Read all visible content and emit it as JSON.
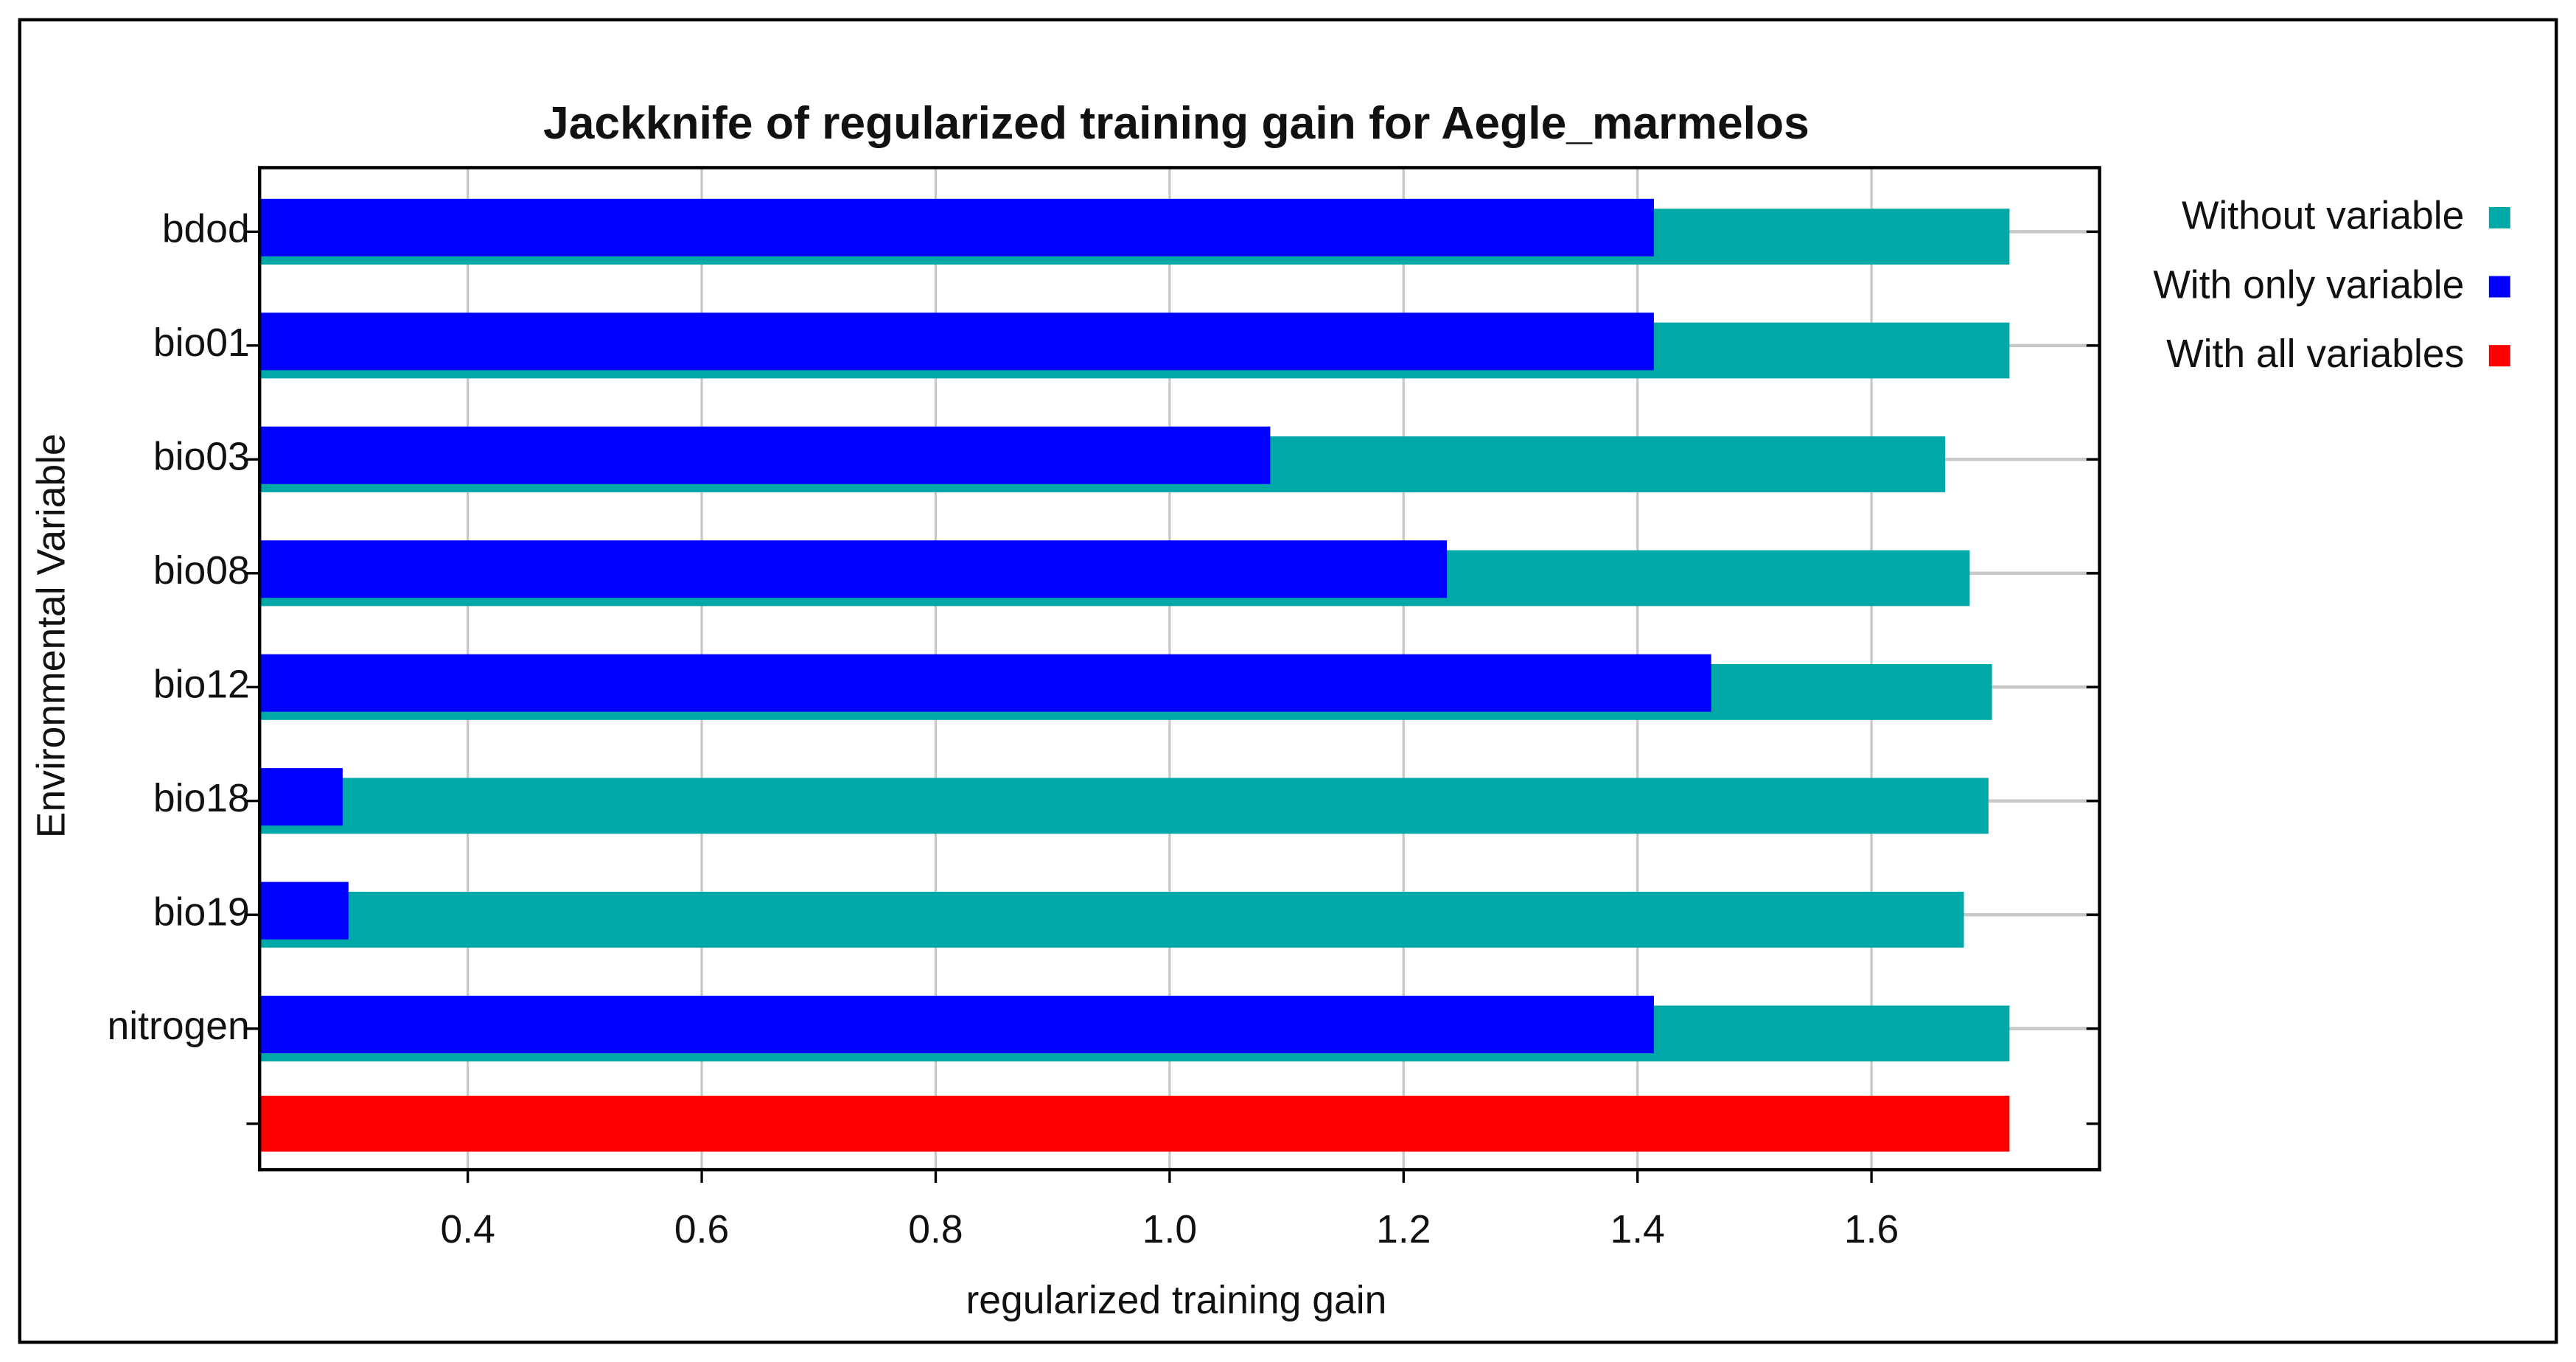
{
  "chart_data": {
    "type": "hbar_jackknife",
    "title": "Jackknife of regularized training gain for Aegle_marmelos",
    "x_label": "regularized training gain",
    "y_label": "Environmental Variable",
    "categories": [
      "bdod",
      "bio01",
      "bio03",
      "bio08",
      "bio12",
      "bio18",
      "bio19",
      "nitrogen",
      null
    ],
    "series": [
      {
        "name": "Without variable",
        "color": "#00a8a8",
        "values": [
          1.718,
          1.718,
          1.663,
          1.684,
          1.703,
          1.7,
          1.679,
          1.718,
          null
        ]
      },
      {
        "name": "With only variable",
        "color": "#0000ff",
        "values": [
          1.414,
          1.414,
          1.086,
          1.237,
          1.463,
          0.293,
          0.298,
          1.414,
          null
        ]
      },
      {
        "name": "With all variables",
        "color": "#ff0000",
        "values": [
          null,
          null,
          null,
          null,
          null,
          null,
          null,
          null,
          1.718
        ]
      }
    ],
    "xlim": [
      0.222,
      1.795
    ],
    "xticks": [
      0.4,
      0.6,
      0.8,
      {
        "value": 1,
        "label": "1.0"
      },
      1.2,
      1.4,
      1.6
    ],
    "grid": true,
    "legend": "right"
  }
}
